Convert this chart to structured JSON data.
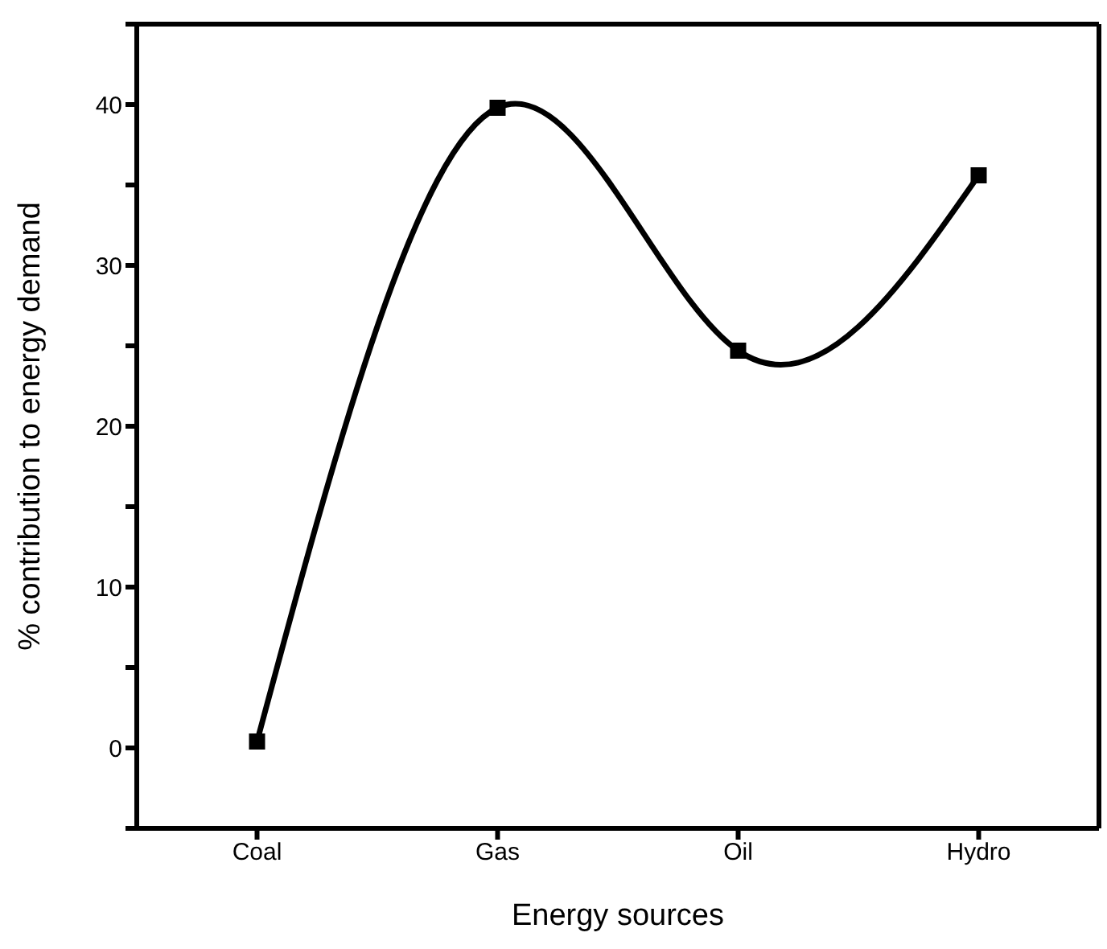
{
  "chart_data": {
    "type": "line",
    "xlabel": "Energy sources",
    "ylabel": "% contribution to energy demand",
    "categories": [
      "Coal",
      "Gas",
      "Oil",
      "Hydro"
    ],
    "series": [
      {
        "color": "#000000",
        "values": [
          0.4,
          39.8,
          24.7,
          35.6
        ]
      }
    ],
    "ylim": [
      -5,
      45
    ],
    "yticks": [
      {
        "value": -5,
        "label": null
      },
      0,
      {
        "value": 5,
        "label": null
      },
      10,
      {
        "value": 15,
        "label": null
      },
      20,
      {
        "value": 25,
        "label": null
      },
      30,
      {
        "value": 35,
        "label": null
      },
      40,
      {
        "value": 45,
        "label": null
      }
    ],
    "marker": "square",
    "line_style": "solid"
  }
}
